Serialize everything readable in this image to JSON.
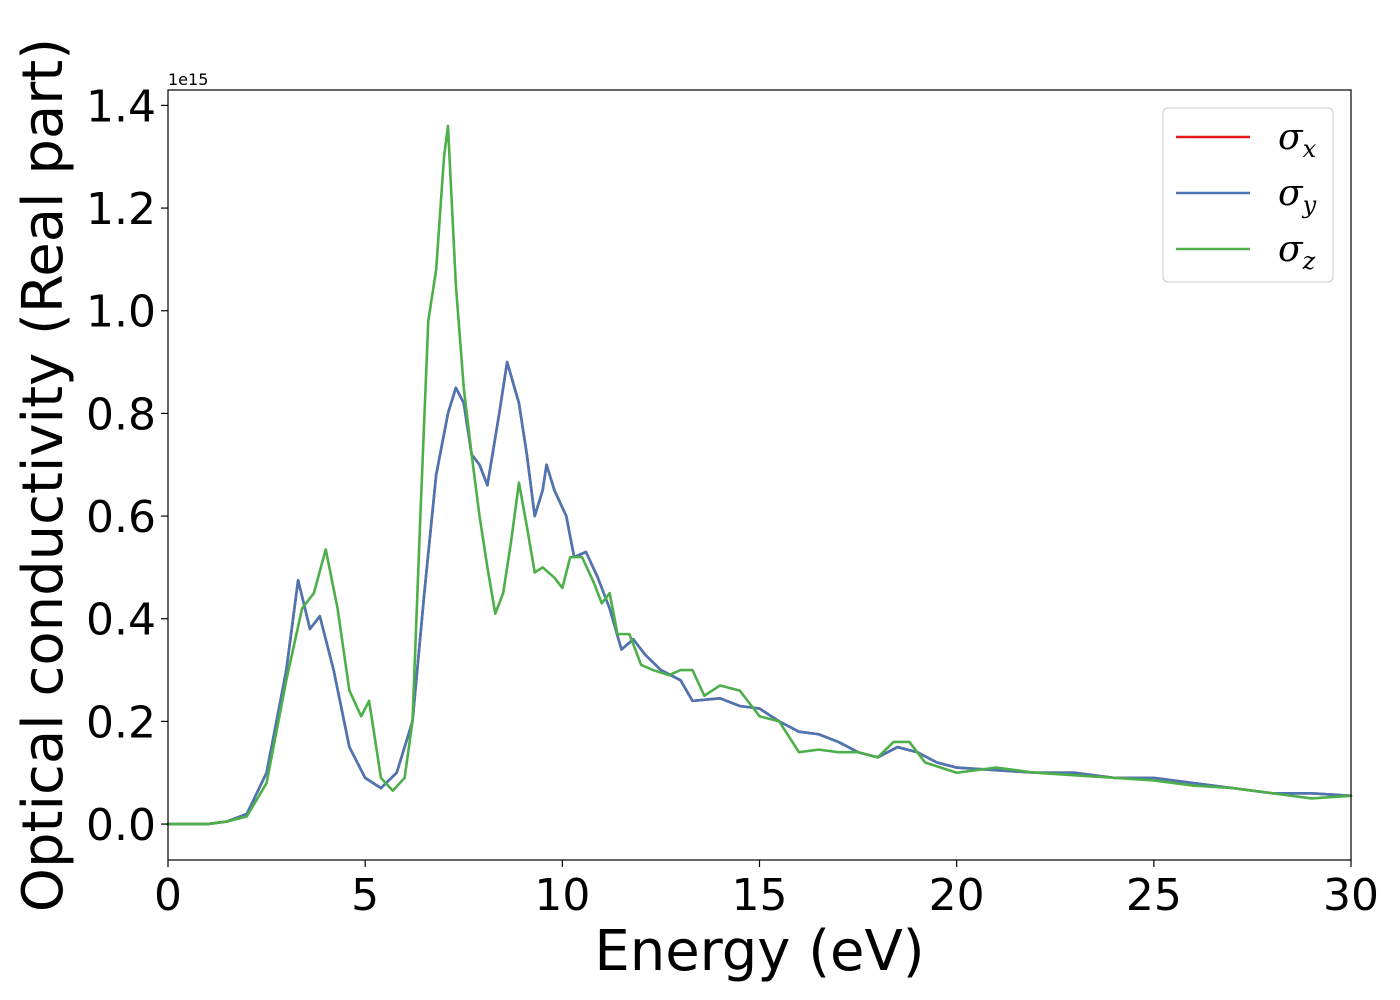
{
  "chart_data": {
    "type": "line",
    "title": "",
    "xlabel": "Energy (eV)",
    "ylabel": "Optical conductivity (Real part)",
    "y_offset_text": "1e15",
    "xlim": [
      0,
      30
    ],
    "ylim": [
      -0.07,
      1.43
    ],
    "grid": false,
    "legend_position": "top-right",
    "x_ticks": [
      0,
      5,
      10,
      15,
      20,
      25,
      30
    ],
    "x_tick_labels": [
      "0",
      "5",
      "10",
      "15",
      "20",
      "25",
      "30"
    ],
    "y_ticks": [
      0.0,
      0.2,
      0.4,
      0.6,
      0.8,
      1.0,
      1.2,
      1.4
    ],
    "y_tick_labels": [
      "0.0",
      "0.2",
      "0.4",
      "0.6",
      "0.8",
      "1.0",
      "1.2",
      "1.4"
    ],
    "series": [
      {
        "name": "σx",
        "symbol": "σ",
        "subscript": "x",
        "color": "#e41a1c",
        "points": [
          [
            0,
            0
          ],
          [
            1,
            0
          ],
          [
            1.5,
            0.005
          ],
          [
            2,
            0.02
          ],
          [
            2.5,
            0.1
          ],
          [
            3,
            0.3
          ],
          [
            3.3,
            0.475
          ],
          [
            3.6,
            0.38
          ],
          [
            3.85,
            0.405
          ],
          [
            4.2,
            0.3
          ],
          [
            4.6,
            0.15
          ],
          [
            5,
            0.09
          ],
          [
            5.4,
            0.07
          ],
          [
            5.8,
            0.1
          ],
          [
            6.2,
            0.2
          ],
          [
            6.5,
            0.45
          ],
          [
            6.8,
            0.68
          ],
          [
            7.1,
            0.8
          ],
          [
            7.3,
            0.85
          ],
          [
            7.5,
            0.82
          ],
          [
            7.7,
            0.72
          ],
          [
            7.9,
            0.7
          ],
          [
            8.1,
            0.66
          ],
          [
            8.4,
            0.8
          ],
          [
            8.6,
            0.9
          ],
          [
            8.9,
            0.82
          ],
          [
            9.1,
            0.72
          ],
          [
            9.3,
            0.6
          ],
          [
            9.5,
            0.65
          ],
          [
            9.6,
            0.7
          ],
          [
            9.8,
            0.65
          ],
          [
            10.1,
            0.6
          ],
          [
            10.3,
            0.52
          ],
          [
            10.6,
            0.53
          ],
          [
            10.9,
            0.48
          ],
          [
            11.2,
            0.42
          ],
          [
            11.5,
            0.34
          ],
          [
            11.8,
            0.36
          ],
          [
            12.1,
            0.33
          ],
          [
            12.5,
            0.3
          ],
          [
            13,
            0.28
          ],
          [
            13.3,
            0.24
          ],
          [
            14,
            0.245
          ],
          [
            14.5,
            0.23
          ],
          [
            15,
            0.225
          ],
          [
            15.5,
            0.2
          ],
          [
            16,
            0.18
          ],
          [
            16.5,
            0.175
          ],
          [
            17,
            0.16
          ],
          [
            17.5,
            0.14
          ],
          [
            18,
            0.13
          ],
          [
            18.5,
            0.15
          ],
          [
            19,
            0.14
          ],
          [
            19.5,
            0.12
          ],
          [
            20,
            0.11
          ],
          [
            21,
            0.105
          ],
          [
            22,
            0.1
          ],
          [
            23,
            0.1
          ],
          [
            24,
            0.09
          ],
          [
            25,
            0.09
          ],
          [
            26,
            0.08
          ],
          [
            27,
            0.07
          ],
          [
            28,
            0.06
          ],
          [
            29,
            0.06
          ],
          [
            30,
            0.055
          ]
        ]
      },
      {
        "name": "σy",
        "symbol": "σ",
        "subscript": "y",
        "color": "#4a77b4",
        "points": [
          [
            0,
            0
          ],
          [
            1,
            0
          ],
          [
            1.5,
            0.005
          ],
          [
            2,
            0.02
          ],
          [
            2.5,
            0.1
          ],
          [
            3,
            0.3
          ],
          [
            3.3,
            0.475
          ],
          [
            3.6,
            0.38
          ],
          [
            3.85,
            0.405
          ],
          [
            4.2,
            0.3
          ],
          [
            4.6,
            0.15
          ],
          [
            5,
            0.09
          ],
          [
            5.4,
            0.07
          ],
          [
            5.8,
            0.1
          ],
          [
            6.2,
            0.2
          ],
          [
            6.5,
            0.45
          ],
          [
            6.8,
            0.68
          ],
          [
            7.1,
            0.8
          ],
          [
            7.3,
            0.85
          ],
          [
            7.5,
            0.82
          ],
          [
            7.7,
            0.72
          ],
          [
            7.9,
            0.7
          ],
          [
            8.1,
            0.66
          ],
          [
            8.4,
            0.8
          ],
          [
            8.6,
            0.9
          ],
          [
            8.9,
            0.82
          ],
          [
            9.1,
            0.72
          ],
          [
            9.3,
            0.6
          ],
          [
            9.5,
            0.65
          ],
          [
            9.6,
            0.7
          ],
          [
            9.8,
            0.65
          ],
          [
            10.1,
            0.6
          ],
          [
            10.3,
            0.52
          ],
          [
            10.6,
            0.53
          ],
          [
            10.9,
            0.48
          ],
          [
            11.2,
            0.42
          ],
          [
            11.5,
            0.34
          ],
          [
            11.8,
            0.36
          ],
          [
            12.1,
            0.33
          ],
          [
            12.5,
            0.3
          ],
          [
            13,
            0.28
          ],
          [
            13.3,
            0.24
          ],
          [
            14,
            0.245
          ],
          [
            14.5,
            0.23
          ],
          [
            15,
            0.225
          ],
          [
            15.5,
            0.2
          ],
          [
            16,
            0.18
          ],
          [
            16.5,
            0.175
          ],
          [
            17,
            0.16
          ],
          [
            17.5,
            0.14
          ],
          [
            18,
            0.13
          ],
          [
            18.5,
            0.15
          ],
          [
            19,
            0.14
          ],
          [
            19.5,
            0.12
          ],
          [
            20,
            0.11
          ],
          [
            21,
            0.105
          ],
          [
            22,
            0.1
          ],
          [
            23,
            0.1
          ],
          [
            24,
            0.09
          ],
          [
            25,
            0.09
          ],
          [
            26,
            0.08
          ],
          [
            27,
            0.07
          ],
          [
            28,
            0.06
          ],
          [
            29,
            0.06
          ],
          [
            30,
            0.055
          ]
        ]
      },
      {
        "name": "σz",
        "symbol": "σ",
        "subscript": "z",
        "color": "#4daf4a",
        "points": [
          [
            0,
            0
          ],
          [
            1,
            0
          ],
          [
            1.5,
            0.005
          ],
          [
            2,
            0.015
          ],
          [
            2.5,
            0.08
          ],
          [
            3,
            0.28
          ],
          [
            3.4,
            0.42
          ],
          [
            3.7,
            0.45
          ],
          [
            4,
            0.535
          ],
          [
            4.3,
            0.42
          ],
          [
            4.6,
            0.26
          ],
          [
            4.9,
            0.21
          ],
          [
            5.1,
            0.24
          ],
          [
            5.4,
            0.09
          ],
          [
            5.7,
            0.065
          ],
          [
            6,
            0.09
          ],
          [
            6.2,
            0.2
          ],
          [
            6.4,
            0.6
          ],
          [
            6.6,
            0.98
          ],
          [
            6.8,
            1.08
          ],
          [
            7,
            1.3
          ],
          [
            7.1,
            1.36
          ],
          [
            7.3,
            1.05
          ],
          [
            7.5,
            0.85
          ],
          [
            7.7,
            0.72
          ],
          [
            7.9,
            0.6
          ],
          [
            8.1,
            0.5
          ],
          [
            8.3,
            0.41
          ],
          [
            8.5,
            0.45
          ],
          [
            8.7,
            0.55
          ],
          [
            8.9,
            0.665
          ],
          [
            9.1,
            0.58
          ],
          [
            9.3,
            0.49
          ],
          [
            9.5,
            0.5
          ],
          [
            9.8,
            0.48
          ],
          [
            10,
            0.46
          ],
          [
            10.2,
            0.52
          ],
          [
            10.5,
            0.52
          ],
          [
            10.8,
            0.47
          ],
          [
            11,
            0.43
          ],
          [
            11.2,
            0.45
          ],
          [
            11.4,
            0.37
          ],
          [
            11.7,
            0.37
          ],
          [
            12,
            0.31
          ],
          [
            12.3,
            0.3
          ],
          [
            12.7,
            0.29
          ],
          [
            13,
            0.3
          ],
          [
            13.3,
            0.3
          ],
          [
            13.6,
            0.25
          ],
          [
            14,
            0.27
          ],
          [
            14.5,
            0.26
          ],
          [
            15,
            0.21
          ],
          [
            15.5,
            0.2
          ],
          [
            16,
            0.14
          ],
          [
            16.5,
            0.145
          ],
          [
            17,
            0.14
          ],
          [
            17.5,
            0.14
          ],
          [
            18,
            0.13
          ],
          [
            18.4,
            0.16
          ],
          [
            18.8,
            0.16
          ],
          [
            19.2,
            0.12
          ],
          [
            20,
            0.1
          ],
          [
            21,
            0.11
          ],
          [
            22,
            0.1
          ],
          [
            23,
            0.095
          ],
          [
            24,
            0.09
          ],
          [
            25,
            0.085
          ],
          [
            26,
            0.075
          ],
          [
            27,
            0.07
          ],
          [
            28,
            0.06
          ],
          [
            29,
            0.05
          ],
          [
            30,
            0.055
          ]
        ]
      }
    ]
  }
}
